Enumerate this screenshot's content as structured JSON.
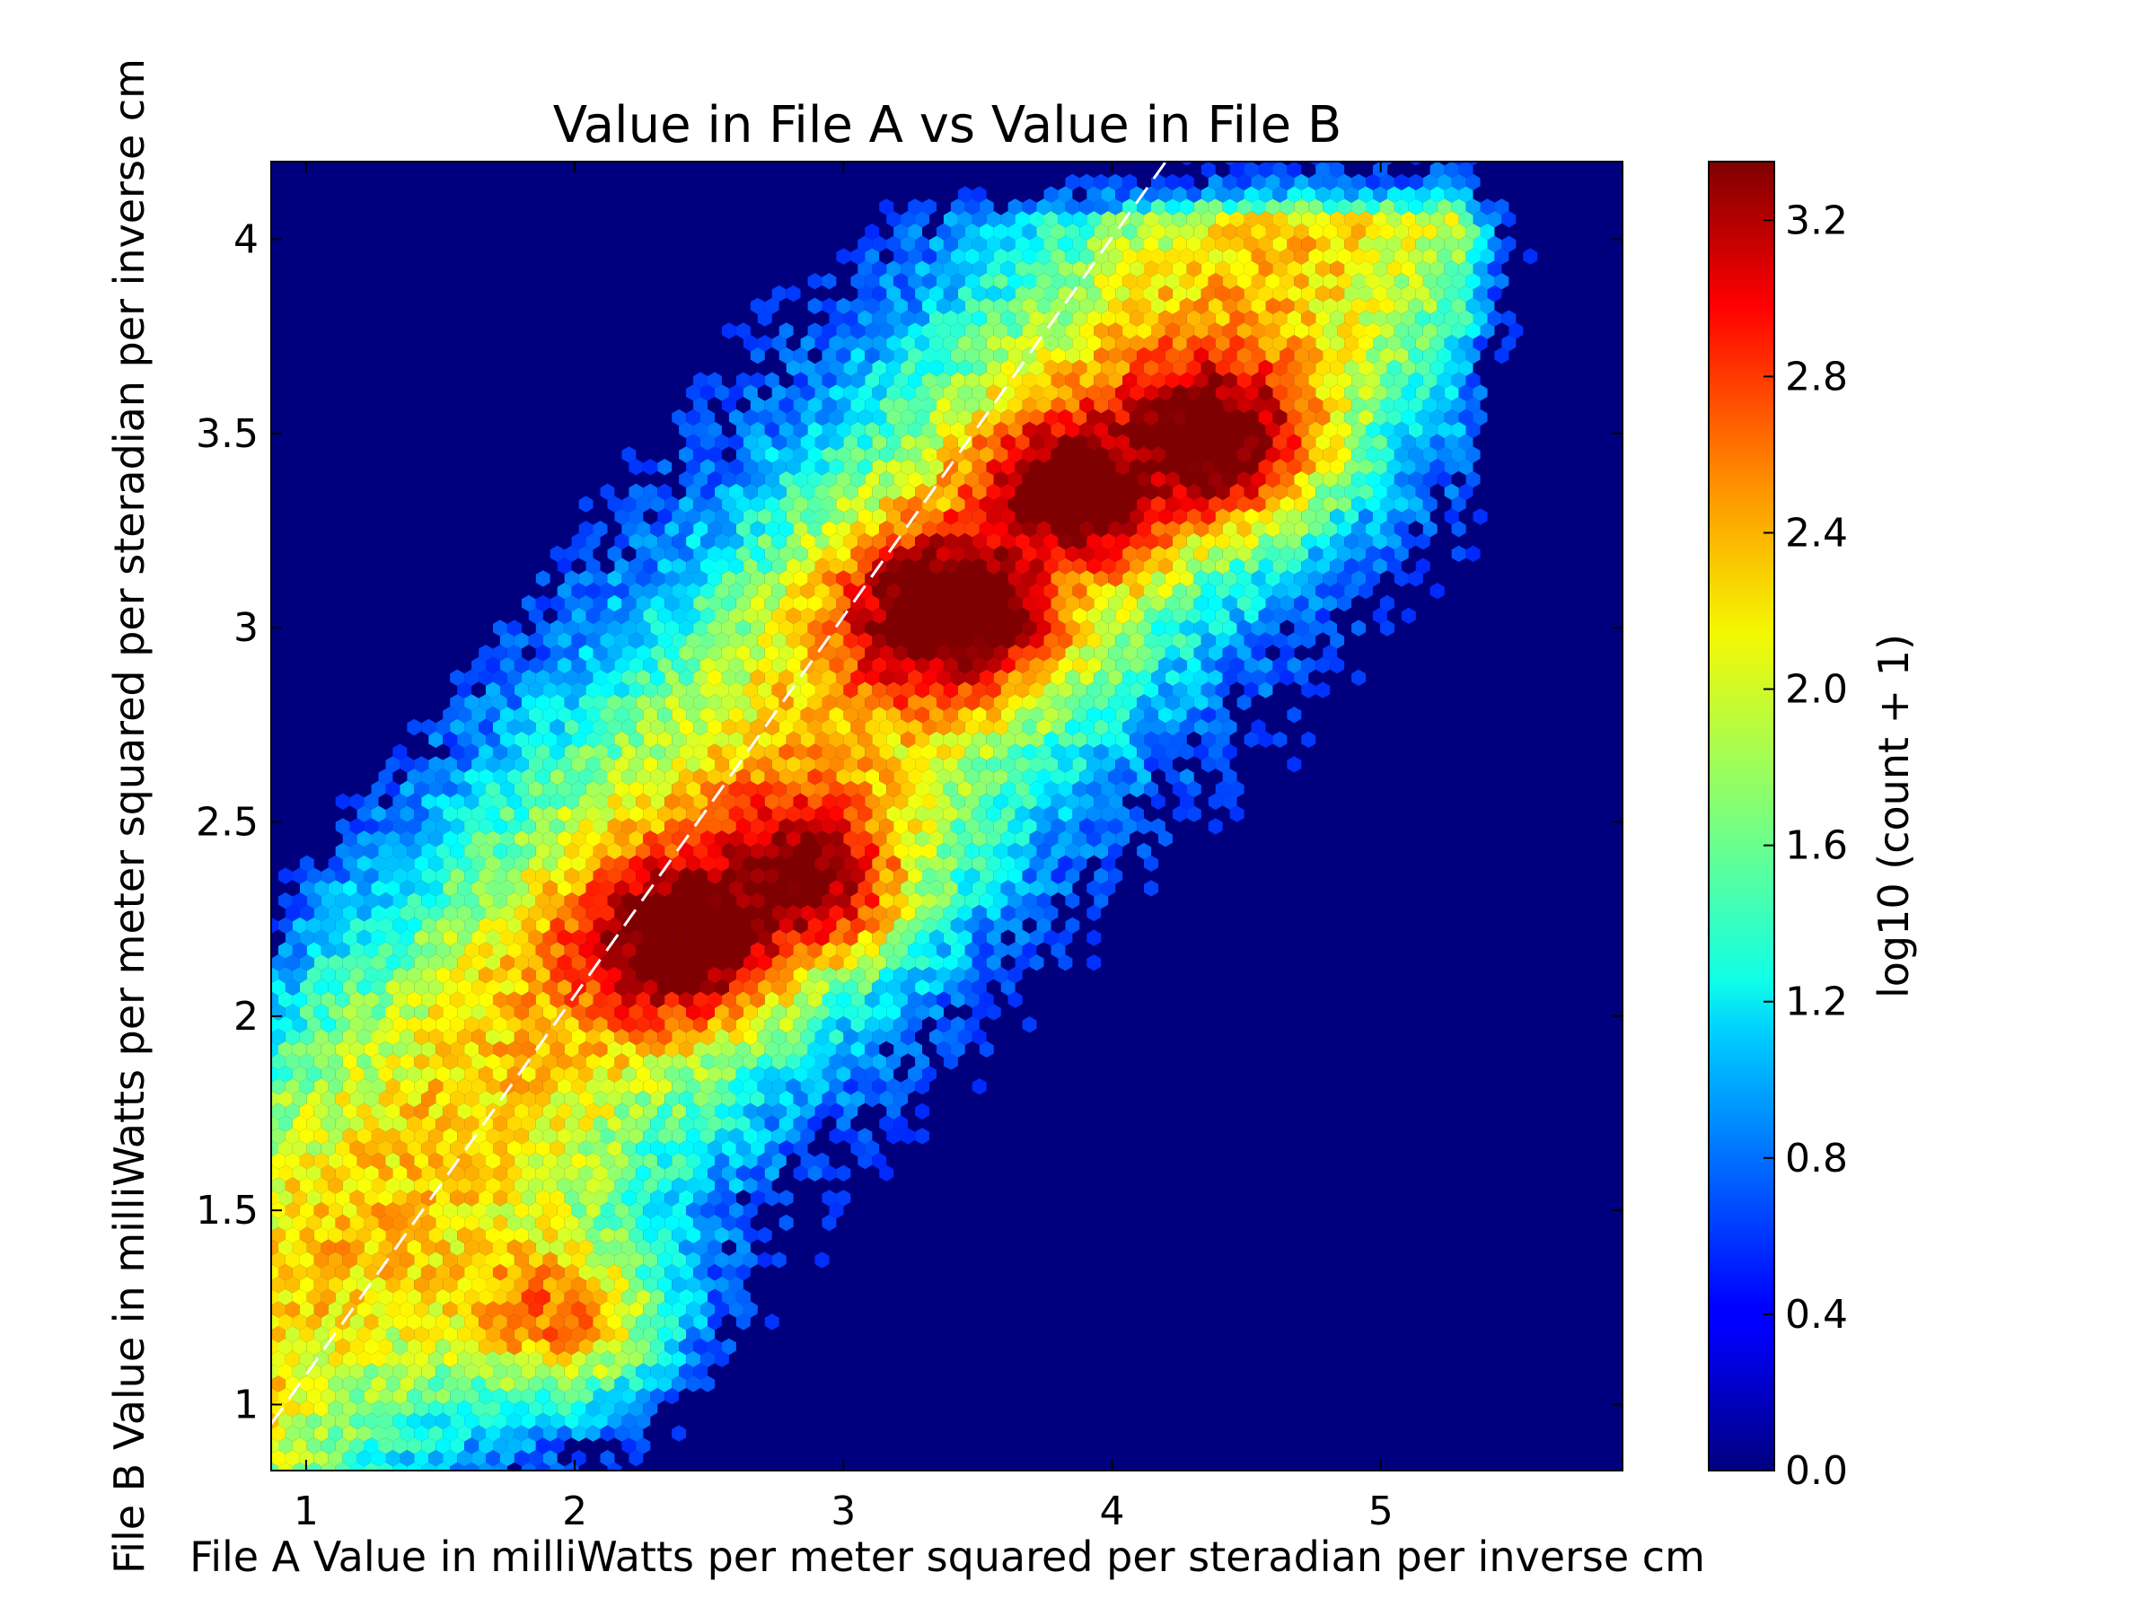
{
  "chart_data": {
    "type": "hexbin",
    "title": "Value in File A vs Value in File B",
    "xlabel": "File A Value in milliWatts per meter squared per steradian per inverse cm",
    "ylabel": "File B Value in milliWatts per meter squared per steradian per inverse cm",
    "colorbar_label": "log10 (count + 1)",
    "xlim": [
      0.87,
      5.9
    ],
    "ylim": [
      0.83,
      4.2
    ],
    "x_ticks": [
      "1",
      "2",
      "3",
      "4",
      "5"
    ],
    "y_ticks": [
      "1",
      "1.5",
      "2",
      "2.5",
      "3",
      "3.5",
      "4"
    ],
    "colorbar_range": [
      0.0,
      3.35
    ],
    "colorbar_ticks": [
      "0.0",
      "0.4",
      "0.8",
      "1.2",
      "1.6",
      "2.0",
      "2.4",
      "2.8",
      "3.2"
    ],
    "colormap": "jet",
    "background_color": "#00007f",
    "grid": false,
    "reference_line": {
      "style": "dashed",
      "color": "#ffffff",
      "from": [
        0.87,
        0.95
      ],
      "to": [
        4.2,
        4.2
      ]
    },
    "density_ridge": [
      {
        "x": 2.0,
        "y": 1.2,
        "value": 3.1
      },
      {
        "x": 2.45,
        "y": 2.2,
        "value": 3.3
      },
      {
        "x": 2.85,
        "y": 2.33,
        "value": 3.15
      },
      {
        "x": 3.4,
        "y": 3.05,
        "value": 3.25
      },
      {
        "x": 3.9,
        "y": 3.35,
        "value": 3.1
      },
      {
        "x": 4.4,
        "y": 3.47,
        "value": 3.3
      }
    ]
  }
}
